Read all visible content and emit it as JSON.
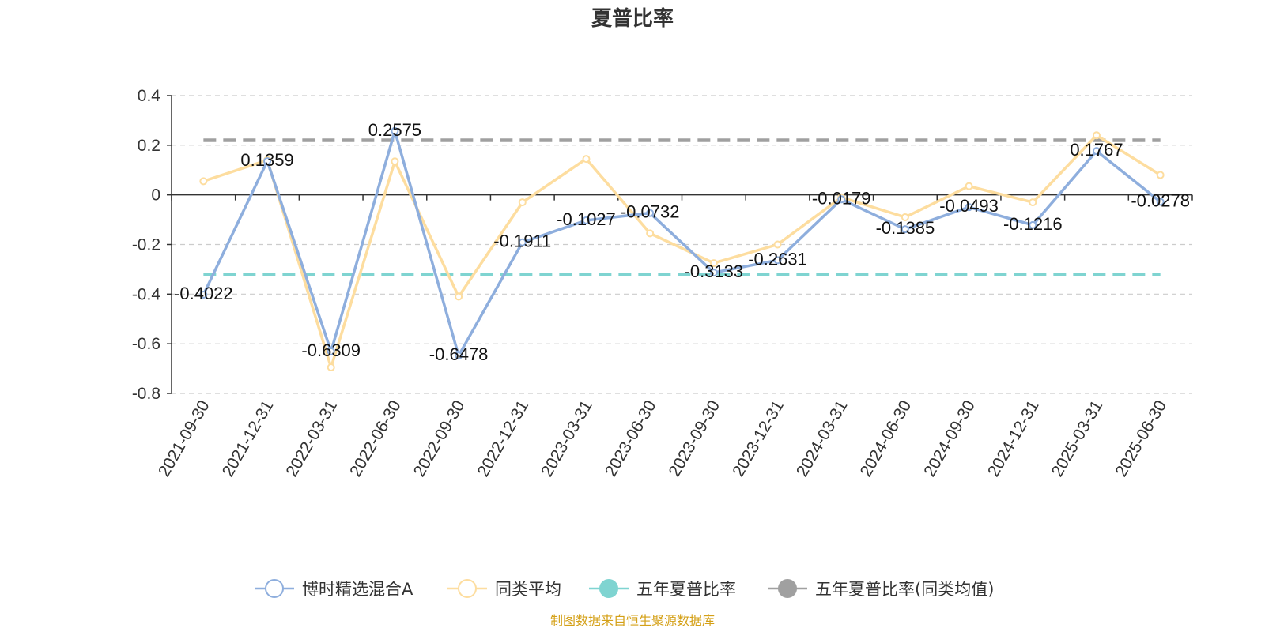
{
  "chart_data": {
    "type": "line",
    "title": "夏普比率",
    "categories": [
      "2021-09-30",
      "2021-12-31",
      "2022-03-31",
      "2022-06-30",
      "2022-09-30",
      "2022-12-31",
      "2023-03-31",
      "2023-06-30",
      "2023-09-30",
      "2023-12-31",
      "2024-03-31",
      "2024-06-30",
      "2024-09-30",
      "2024-12-31",
      "2025-03-31",
      "2025-06-30"
    ],
    "yticks": [
      "0.4",
      "0.2",
      "0",
      "-0.2",
      "-0.4",
      "-0.6",
      "-0.8"
    ],
    "ylim": [
      -0.8,
      0.4
    ],
    "grid": true,
    "legend_position": "bottom",
    "series": [
      {
        "name": "博时精选混合A",
        "color": "#8eaedd",
        "values": [
          -0.4022,
          0.1359,
          -0.6309,
          0.2575,
          -0.6478,
          -0.1911,
          -0.1027,
          -0.0732,
          -0.3133,
          -0.2631,
          -0.0179,
          -0.1385,
          -0.0493,
          -0.1216,
          0.1767,
          -0.0278
        ],
        "labels": [
          "-0.4022",
          "0.1359",
          "-0.6309",
          "0.2575",
          "-0.6478",
          "-0.1911",
          "-0.1027",
          "-0.0732",
          "-0.3133",
          "-0.2631",
          "-0.0179",
          "-0.1385",
          "-0.0493",
          "-0.1216",
          "0.1767",
          "-0.0278"
        ]
      },
      {
        "name": "同类平均",
        "color": "#fddd9f",
        "values": [
          0.055,
          0.14,
          -0.695,
          0.135,
          -0.41,
          -0.03,
          0.145,
          -0.155,
          -0.275,
          -0.2,
          -0.01,
          -0.09,
          0.035,
          -0.03,
          0.24,
          0.08
        ]
      },
      {
        "name": "五年夏普比率",
        "color": "#7fd4d1",
        "style": "dashed",
        "values": [
          -0.32,
          -0.32,
          -0.32,
          -0.32,
          -0.32,
          -0.32,
          -0.32,
          -0.32,
          -0.32,
          -0.32,
          -0.32,
          -0.32,
          -0.32,
          -0.32,
          -0.32,
          -0.32
        ]
      },
      {
        "name": "五年夏普比率(同类均值)",
        "color": "#a0a0a0",
        "style": "dashed",
        "values": [
          0.22,
          0.22,
          0.22,
          0.22,
          0.22,
          0.22,
          0.22,
          0.22,
          0.22,
          0.22,
          0.22,
          0.22,
          0.22,
          0.22,
          0.22,
          0.22
        ]
      }
    ]
  },
  "legend": [
    {
      "label": "博时精选混合A",
      "icon": "hollow-circle-icon",
      "color": "#8eaedd"
    },
    {
      "label": "同类平均",
      "icon": "hollow-circle-icon",
      "color": "#fddd9f"
    },
    {
      "label": "五年夏普比率",
      "icon": "filled-circle-icon",
      "color": "#7fd4d1"
    },
    {
      "label": "五年夏普比率(同类均值)",
      "icon": "filled-circle-icon",
      "color": "#a0a0a0"
    }
  ],
  "source": {
    "text": "制图数据来自恒生聚源数据库",
    "color": "#d4a017"
  }
}
